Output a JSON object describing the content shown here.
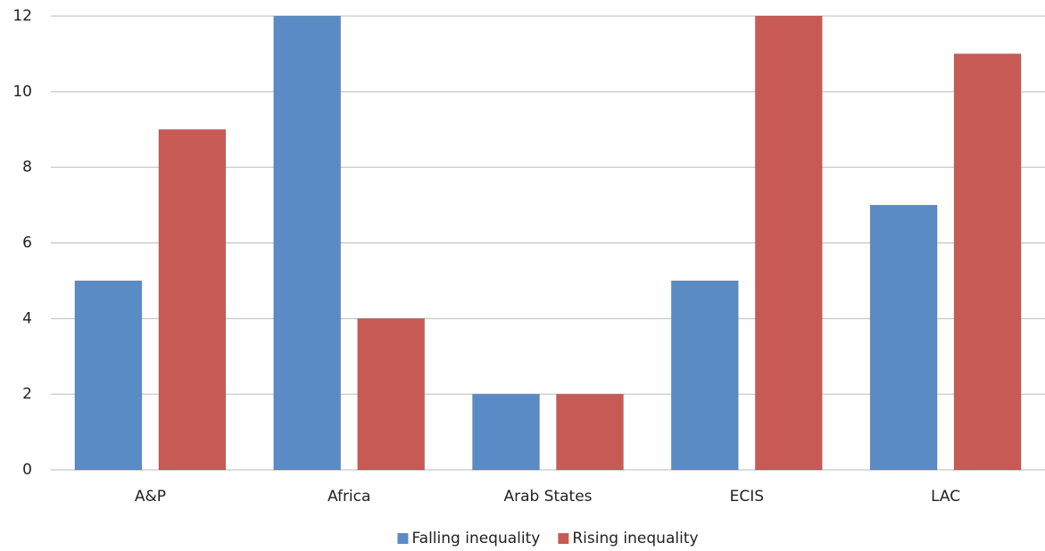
{
  "chart_data": {
    "type": "bar",
    "categories": [
      "A&P",
      "Africa",
      "Arab States",
      "ECIS",
      "LAC"
    ],
    "series": [
      {
        "name": "Falling inequality",
        "color": "#5b8bc5",
        "values": [
          5,
          12,
          2,
          5,
          7
        ]
      },
      {
        "name": "Rising inequality",
        "color": "#c85a56",
        "values": [
          9,
          4,
          2,
          12,
          11
        ]
      }
    ],
    "ylim": [
      0,
      12
    ],
    "yticks": [
      0,
      2,
      4,
      6,
      8,
      10,
      12
    ],
    "grid": true,
    "legend": "bottom"
  }
}
